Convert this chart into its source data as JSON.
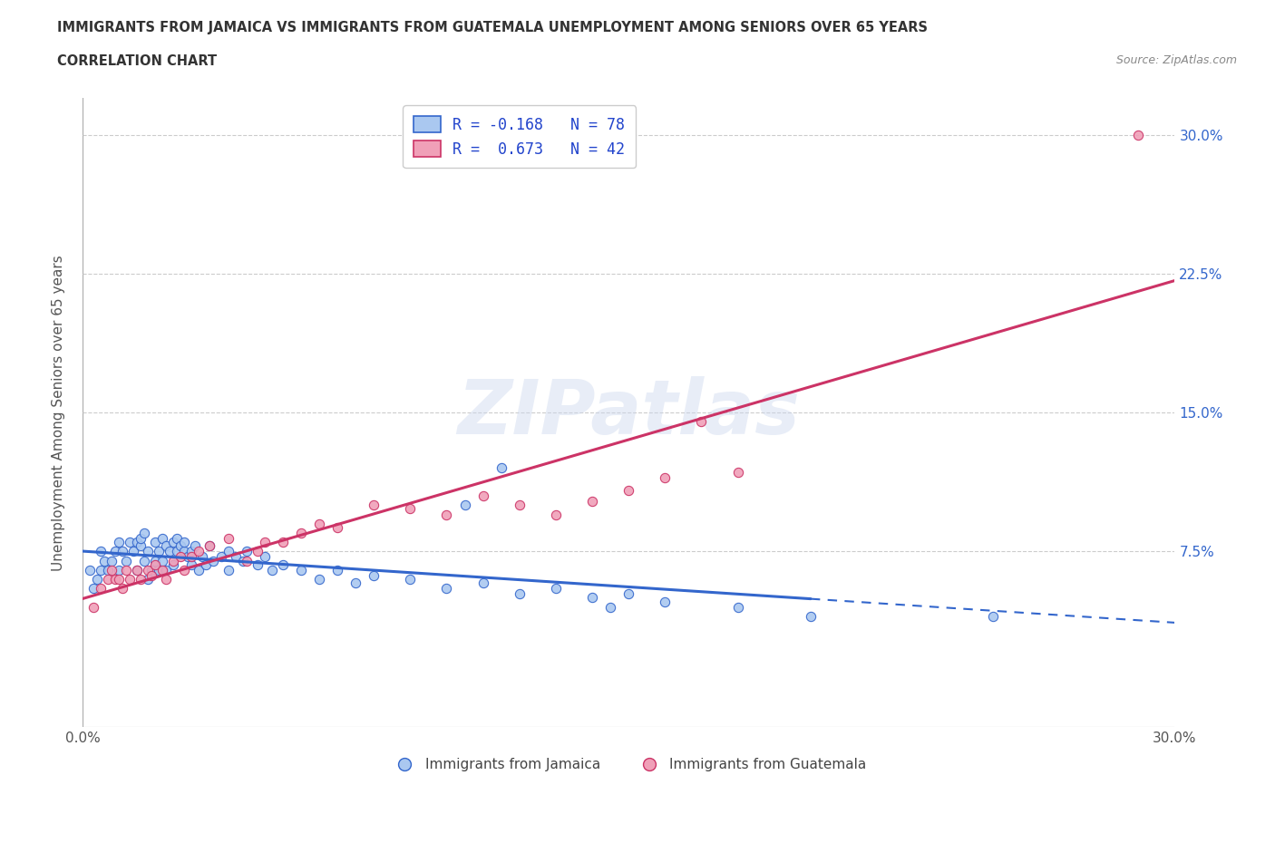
{
  "title_line1": "IMMIGRANTS FROM JAMAICA VS IMMIGRANTS FROM GUATEMALA UNEMPLOYMENT AMONG SENIORS OVER 65 YEARS",
  "title_line2": "CORRELATION CHART",
  "source_text": "Source: ZipAtlas.com",
  "ylabel": "Unemployment Among Seniors over 65 years",
  "xlim": [
    0.0,
    0.3
  ],
  "ylim": [
    -0.02,
    0.32
  ],
  "jamaica_color": "#aac8f0",
  "guatemala_color": "#f0a0b8",
  "jamaica_line_color": "#3366cc",
  "guatemala_line_color": "#cc3366",
  "jamaica_R": -0.168,
  "jamaica_N": 78,
  "guatemala_R": 0.673,
  "guatemala_N": 42,
  "watermark": "ZIPatlas",
  "jamaica_scatter_x": [
    0.002,
    0.003,
    0.004,
    0.005,
    0.005,
    0.006,
    0.007,
    0.008,
    0.009,
    0.01,
    0.01,
    0.011,
    0.012,
    0.013,
    0.014,
    0.015,
    0.015,
    0.016,
    0.016,
    0.017,
    0.017,
    0.018,
    0.018,
    0.019,
    0.02,
    0.02,
    0.021,
    0.021,
    0.022,
    0.022,
    0.023,
    0.023,
    0.024,
    0.025,
    0.025,
    0.026,
    0.026,
    0.027,
    0.028,
    0.028,
    0.029,
    0.03,
    0.03,
    0.031,
    0.032,
    0.033,
    0.034,
    0.035,
    0.036,
    0.038,
    0.04,
    0.04,
    0.042,
    0.044,
    0.045,
    0.048,
    0.05,
    0.052,
    0.055,
    0.06,
    0.065,
    0.07,
    0.075,
    0.08,
    0.09,
    0.1,
    0.11,
    0.12,
    0.13,
    0.14,
    0.15,
    0.16,
    0.18,
    0.2,
    0.115,
    0.105,
    0.145,
    0.25
  ],
  "jamaica_scatter_y": [
    0.065,
    0.055,
    0.06,
    0.065,
    0.075,
    0.07,
    0.065,
    0.07,
    0.075,
    0.065,
    0.08,
    0.075,
    0.07,
    0.08,
    0.075,
    0.065,
    0.08,
    0.078,
    0.082,
    0.085,
    0.07,
    0.06,
    0.075,
    0.065,
    0.07,
    0.08,
    0.065,
    0.075,
    0.082,
    0.07,
    0.078,
    0.065,
    0.075,
    0.08,
    0.068,
    0.075,
    0.082,
    0.078,
    0.075,
    0.08,
    0.072,
    0.075,
    0.068,
    0.078,
    0.065,
    0.072,
    0.068,
    0.078,
    0.07,
    0.072,
    0.075,
    0.065,
    0.072,
    0.07,
    0.075,
    0.068,
    0.072,
    0.065,
    0.068,
    0.065,
    0.06,
    0.065,
    0.058,
    0.062,
    0.06,
    0.055,
    0.058,
    0.052,
    0.055,
    0.05,
    0.052,
    0.048,
    0.045,
    0.04,
    0.12,
    0.1,
    0.045,
    0.04
  ],
  "guatemala_scatter_x": [
    0.003,
    0.005,
    0.007,
    0.008,
    0.009,
    0.01,
    0.011,
    0.012,
    0.013,
    0.015,
    0.016,
    0.018,
    0.019,
    0.02,
    0.022,
    0.023,
    0.025,
    0.027,
    0.028,
    0.03,
    0.032,
    0.035,
    0.04,
    0.045,
    0.048,
    0.05,
    0.055,
    0.06,
    0.065,
    0.07,
    0.08,
    0.09,
    0.1,
    0.11,
    0.12,
    0.13,
    0.14,
    0.15,
    0.16,
    0.18,
    0.29,
    0.17
  ],
  "guatemala_scatter_y": [
    0.045,
    0.055,
    0.06,
    0.065,
    0.06,
    0.06,
    0.055,
    0.065,
    0.06,
    0.065,
    0.06,
    0.065,
    0.062,
    0.068,
    0.065,
    0.06,
    0.07,
    0.072,
    0.065,
    0.072,
    0.075,
    0.078,
    0.082,
    0.07,
    0.075,
    0.08,
    0.08,
    0.085,
    0.09,
    0.088,
    0.1,
    0.098,
    0.095,
    0.105,
    0.1,
    0.095,
    0.102,
    0.108,
    0.115,
    0.118,
    0.3,
    0.145
  ]
}
